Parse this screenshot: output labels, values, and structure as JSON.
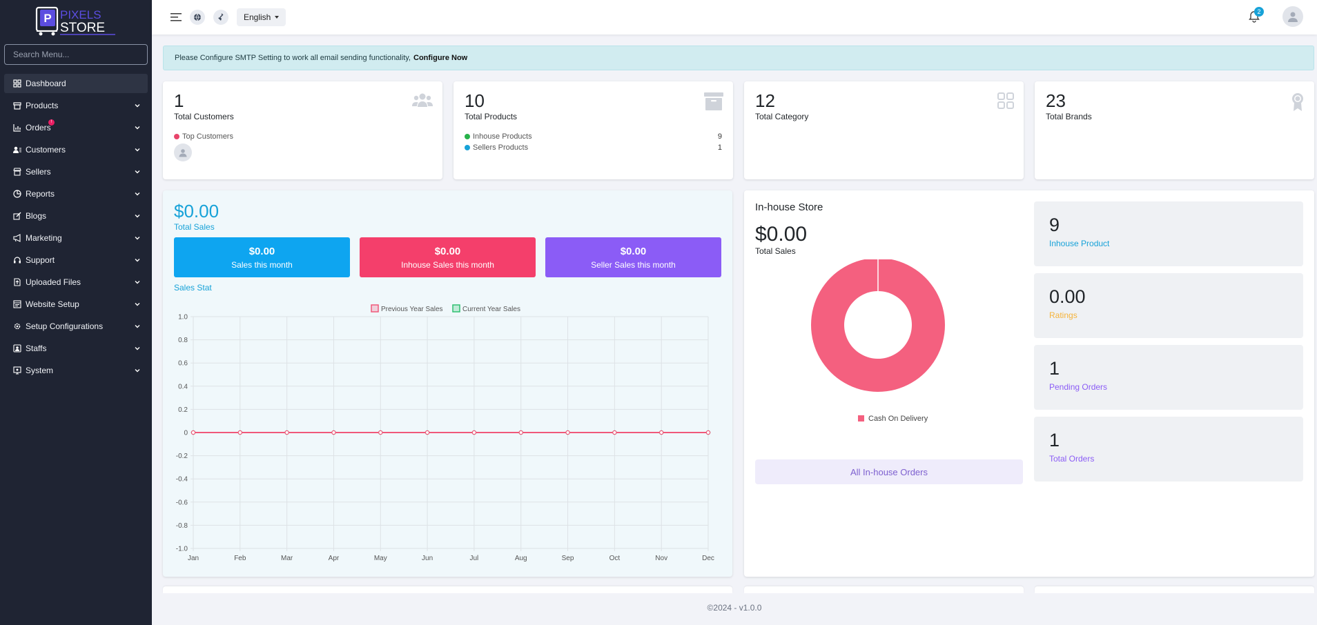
{
  "brand": {
    "line1": "PIXELS",
    "line2": "STORE",
    "accent": "#5b4de0"
  },
  "search": {
    "placeholder": "Search Menu..."
  },
  "menu": [
    {
      "label": "Dashboard",
      "icon": "dashboard-icon",
      "active": true
    },
    {
      "label": "Products",
      "icon": "box-icon"
    },
    {
      "label": "Orders",
      "icon": "chart-icon",
      "badge": "!"
    },
    {
      "label": "Customers",
      "icon": "users-icon"
    },
    {
      "label": "Sellers",
      "icon": "store-icon"
    },
    {
      "label": "Reports",
      "icon": "pie-icon"
    },
    {
      "label": "Blogs",
      "icon": "edit-icon"
    },
    {
      "label": "Marketing",
      "icon": "megaphone-icon"
    },
    {
      "label": "Support",
      "icon": "headset-icon"
    },
    {
      "label": "Uploaded Files",
      "icon": "file-upload-icon"
    },
    {
      "label": "Website Setup",
      "icon": "website-icon"
    },
    {
      "label": "Setup Configurations",
      "icon": "cog-icon"
    },
    {
      "label": "Staffs",
      "icon": "staff-icon"
    },
    {
      "label": "System",
      "icon": "system-icon"
    }
  ],
  "topbar": {
    "language": "English",
    "notifications": "2"
  },
  "alert": {
    "text": "Please Configure SMTP Setting to work all email sending functionality,",
    "link": "Configure Now"
  },
  "stats": {
    "customers": {
      "value": "1",
      "label": "Total Customers",
      "top_label": "Top Customers"
    },
    "products": {
      "value": "10",
      "label": "Total Products",
      "inhouse_label": "Inhouse Products",
      "inhouse_value": "9",
      "sellers_label": "Sellers Products",
      "sellers_value": "1"
    },
    "category": {
      "value": "12",
      "label": "Total Category"
    },
    "brands": {
      "value": "23",
      "label": "Total Brands"
    }
  },
  "sales": {
    "total": "$0.00",
    "total_label": "Total Sales",
    "boxes": [
      {
        "amount": "$0.00",
        "label": "Sales this month",
        "color": "#0ea5f0"
      },
      {
        "amount": "$0.00",
        "label": "Inhouse Sales this month",
        "color": "#f43f6b"
      },
      {
        "amount": "$0.00",
        "label": "Seller Sales this month",
        "color": "#8b5cf6"
      }
    ],
    "stat_title": "Sales Stat"
  },
  "chart_data": {
    "type": "line",
    "categories": [
      "Jan",
      "Feb",
      "Mar",
      "Apr",
      "May",
      "Jun",
      "Jul",
      "Aug",
      "Sep",
      "Oct",
      "Nov",
      "Dec"
    ],
    "series": [
      {
        "name": "Previous Year Sales",
        "values": [
          0,
          0,
          0,
          0,
          0,
          0,
          0,
          0,
          0,
          0,
          0,
          0
        ],
        "color": "#f0587a"
      },
      {
        "name": "Current Year Sales",
        "values": [
          0,
          0,
          0,
          0,
          0,
          0,
          0,
          0,
          0,
          0,
          0,
          0
        ],
        "color": "#2fbf71"
      }
    ],
    "ylim": [
      -1.0,
      1.0
    ],
    "yticks": [
      "1.0",
      "0.8",
      "0.6",
      "0.4",
      "0.2",
      "0",
      "-0.2",
      "-0.4",
      "-0.6",
      "-0.8",
      "-1.0"
    ],
    "legend": "top",
    "grid": true
  },
  "inhouse": {
    "title": "In-house Store",
    "total": "$0.00",
    "total_label": "Total Sales",
    "donut": {
      "type": "pie",
      "labels": [
        "Cash On Delivery"
      ],
      "values": [
        100
      ],
      "color": "#f4607f"
    },
    "button": "All In-house Orders",
    "metrics": [
      {
        "value": "9",
        "label": "Inhouse Product",
        "color": "#17a2d8"
      },
      {
        "value": "0.00",
        "label": "Ratings",
        "color": "#f5b33a"
      },
      {
        "value": "1",
        "label": "Pending Orders",
        "color": "#8b5cf6"
      },
      {
        "value": "1",
        "label": "Total Orders",
        "color": "#8b5cf6"
      }
    ]
  },
  "footer": "©2024 - v1.0.0"
}
